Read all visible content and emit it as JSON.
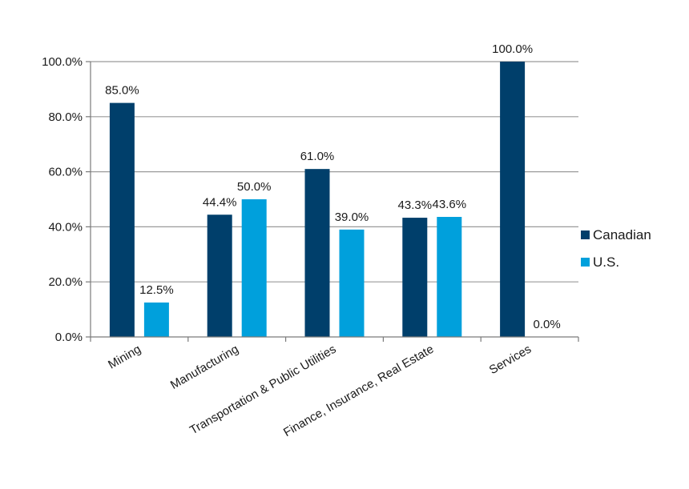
{
  "chart_data": {
    "type": "bar",
    "title": "",
    "xlabel": "",
    "ylabel": "",
    "ylim": [
      0,
      100
    ],
    "yticks": [
      0,
      20,
      40,
      60,
      80,
      100
    ],
    "ytick_labels": [
      "0.0%",
      "20.0%",
      "40.0%",
      "60.0%",
      "80.0%",
      "100.0%"
    ],
    "grid": true,
    "legend_position": "right",
    "categories": [
      "Mining",
      "Manufacturing",
      "Transportation & Public Utilities",
      "Finance, Insurance, Real Estate",
      "Services"
    ],
    "series": [
      {
        "name": "Canadian",
        "color": "#003f6b",
        "values": [
          85.0,
          44.4,
          61.0,
          43.3,
          100.0
        ],
        "labels": [
          "85.0%",
          "44.4%",
          "61.0%",
          "43.3%",
          "100.0%"
        ]
      },
      {
        "name": "U.S.",
        "color": "#00a0dc",
        "values": [
          12.5,
          50.0,
          39.0,
          43.6,
          0.0
        ],
        "labels": [
          "12.5%",
          "50.0%",
          "39.0%",
          "43.6%",
          "0.0%"
        ]
      }
    ]
  }
}
